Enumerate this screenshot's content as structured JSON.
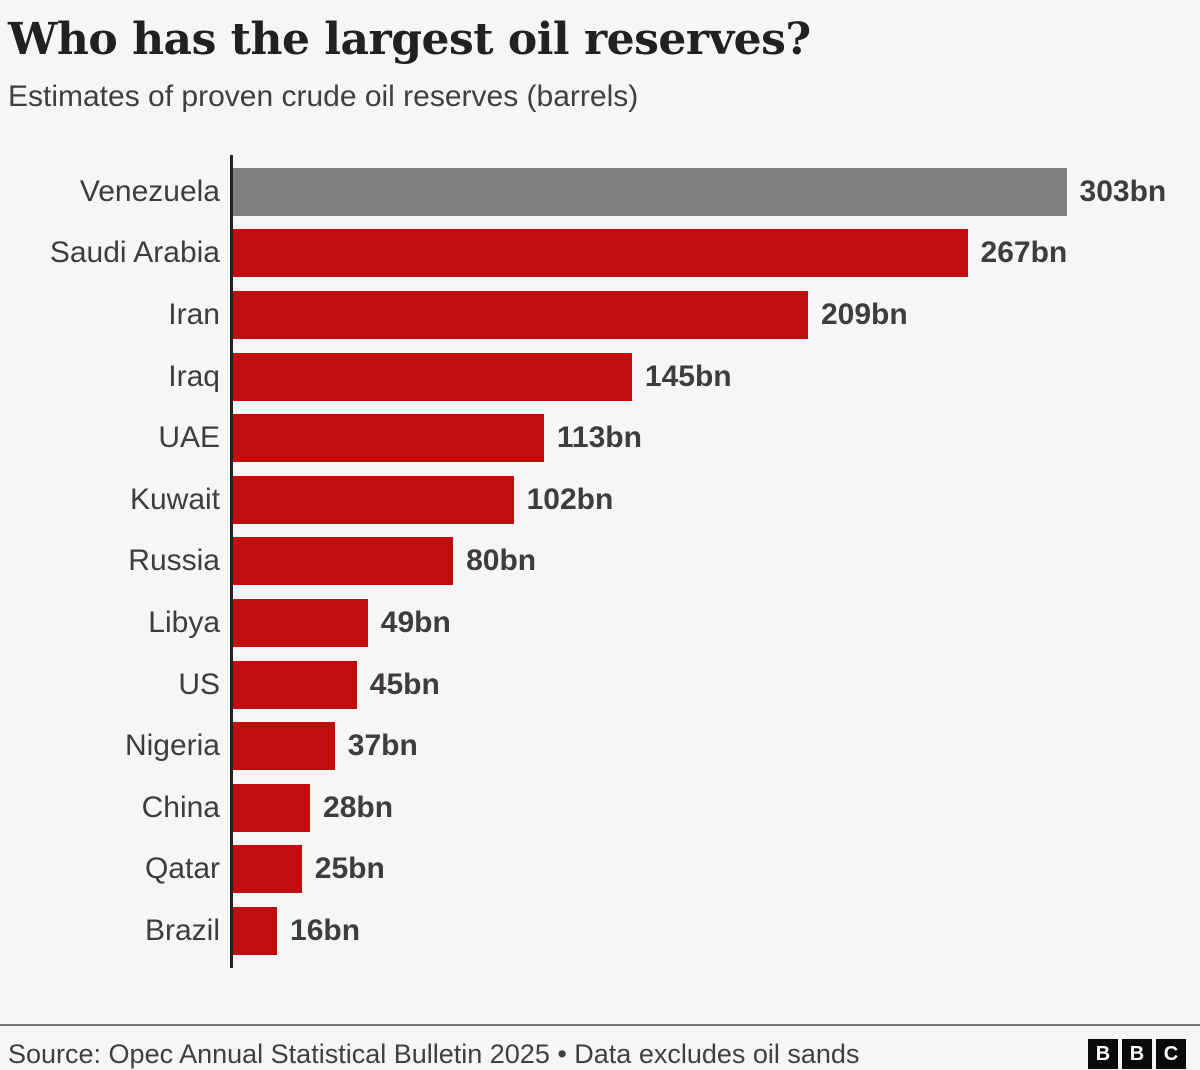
{
  "title": "Who has the largest oil reserves?",
  "subtitle": "Estimates of proven crude oil reserves (barrels)",
  "footer": {
    "source": "Source: Opec Annual Statistical Bulletin 2025 • Data excludes oil sands",
    "logo_letters": [
      "B",
      "B",
      "C"
    ]
  },
  "colors": {
    "bar_red": "#c00d0d",
    "bar_gray": "#808080",
    "background": "#f6f6f6",
    "title_text": "#212121",
    "label_text": "#3d3d3d",
    "axis": "#222222",
    "divider": "#767676"
  },
  "chart_data": {
    "type": "bar",
    "orientation": "horizontal",
    "title": "Who has the largest oil reserves?",
    "subtitle": "Estimates of proven crude oil reserves (barrels)",
    "unit": "bn barrels",
    "categories": [
      "Venezuela",
      "Saudi Arabia",
      "Iran",
      "Iraq",
      "UAE",
      "Kuwait",
      "Russia",
      "Libya",
      "US",
      "Nigeria",
      "China",
      "Qatar",
      "Brazil"
    ],
    "values": [
      303,
      267,
      209,
      145,
      113,
      102,
      80,
      49,
      45,
      37,
      28,
      25,
      16
    ],
    "value_labels": [
      "303bn",
      "267bn",
      "209bn",
      "145bn",
      "113bn",
      "102bn",
      "80bn",
      "49bn",
      "45bn",
      "37bn",
      "28bn",
      "25bn",
      "16bn"
    ],
    "highlight_category": "Venezuela",
    "xlim": [
      0,
      352
    ],
    "grid": false,
    "legend": false,
    "source": "Opec Annual Statistical Bulletin 2025",
    "note": "Data excludes oil sands"
  }
}
